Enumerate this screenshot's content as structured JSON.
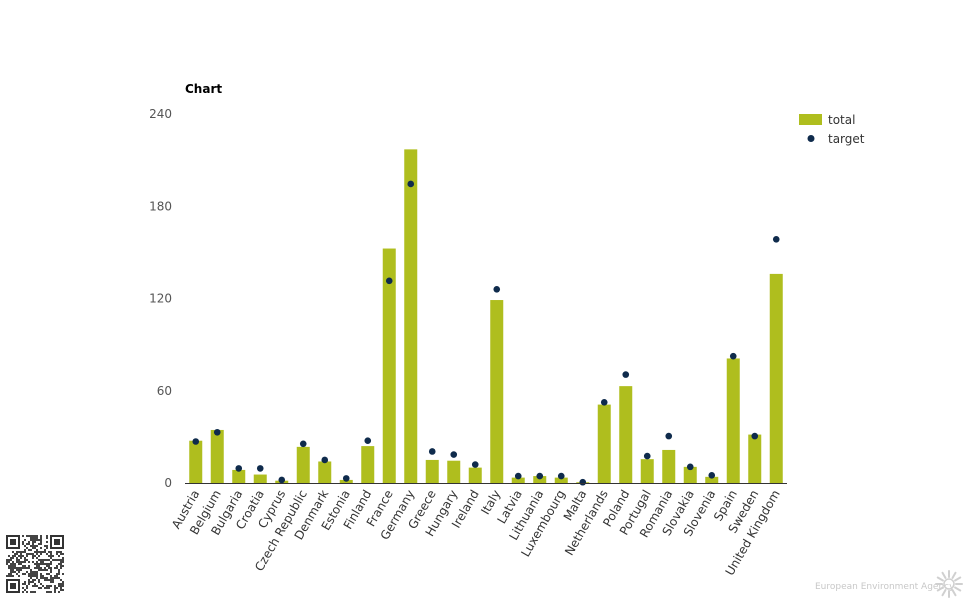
{
  "chart_data": {
    "type": "bar",
    "title": "Chart",
    "xlabel": "",
    "ylabel": "",
    "ylim": [
      0,
      240
    ],
    "yticks": [
      0,
      60,
      120,
      180,
      240
    ],
    "grid": false,
    "legend_position": "top-right",
    "categories": [
      "Austria",
      "Belgium",
      "Bulgaria",
      "Croatia",
      "Cyprus",
      "Czech Republic",
      "Denmark",
      "Estonia",
      "Finland",
      "France",
      "Germany",
      "Greece",
      "Hungary",
      "Ireland",
      "Italy",
      "Latvia",
      "Lithuania",
      "Luxembourg",
      "Malta",
      "Netherlands",
      "Poland",
      "Portugal",
      "Romania",
      "Slovakia",
      "Slovenia",
      "Spain",
      "Sweden",
      "United Kingdom"
    ],
    "series": [
      {
        "name": "total",
        "kind": "bar",
        "color": "#afbe1e",
        "values": [
          27.5,
          34.5,
          8.5,
          5.5,
          1.5,
          23.5,
          14,
          2,
          24,
          152.5,
          217,
          15,
          14.5,
          10,
          119,
          3.5,
          4.5,
          3.5,
          0.5,
          51,
          63,
          15.5,
          21.5,
          10.5,
          4,
          81,
          31.5,
          136
        ]
      },
      {
        "name": "target",
        "kind": "scatter",
        "color": "#0f2b4c",
        "values": [
          27,
          33,
          9.5,
          9.5,
          2,
          25.5,
          15,
          3,
          27.5,
          131.5,
          194.5,
          20.5,
          18.5,
          12,
          126,
          4.5,
          4.5,
          4.5,
          0.5,
          52.5,
          70.5,
          17.5,
          30.5,
          10.5,
          5,
          82.5,
          30.5,
          158.5
        ]
      }
    ]
  },
  "footer": {
    "credit": "European Environment Agency"
  },
  "colors": {
    "bar": "#afbe1e",
    "target": "#0f2b4c",
    "axis": "#333333"
  }
}
